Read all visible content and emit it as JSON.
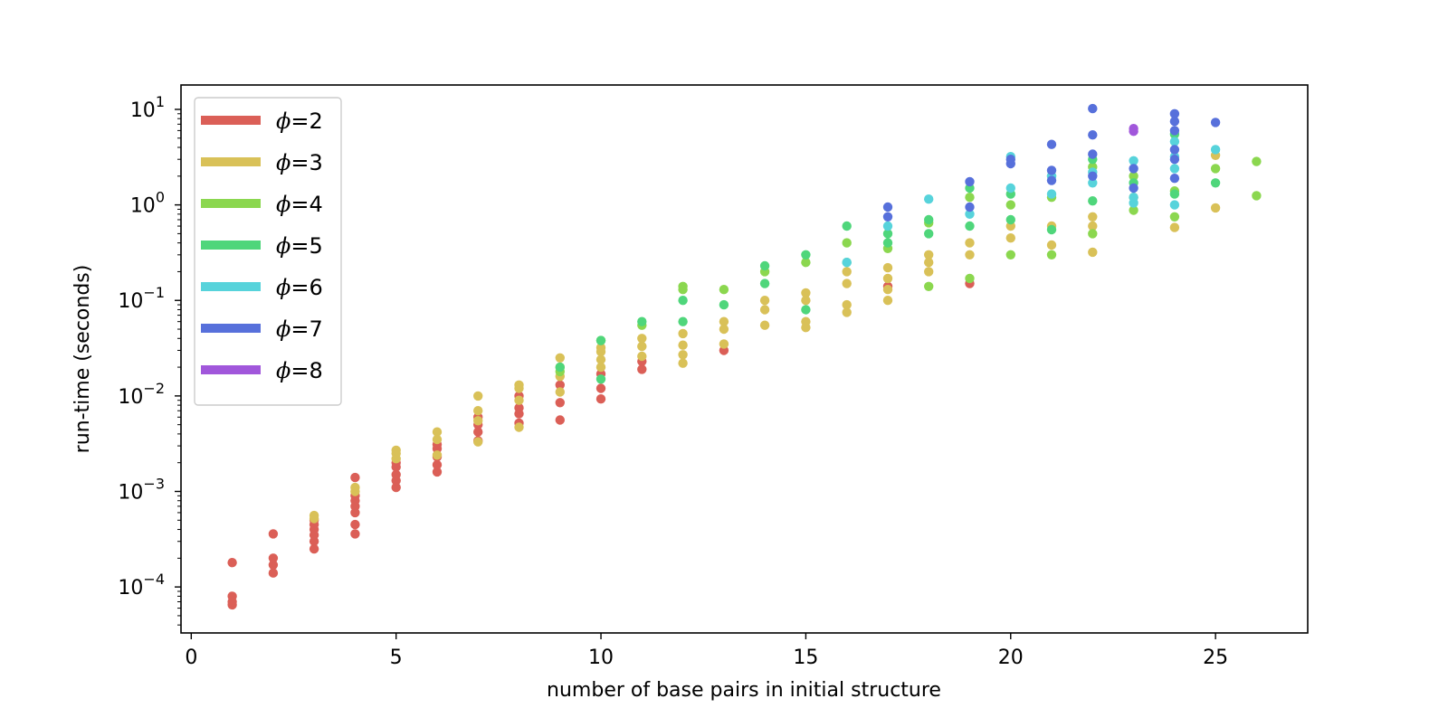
{
  "chart_data": {
    "type": "scatter",
    "title": "",
    "xlabel": "number of base pairs in initial structure",
    "ylabel": "run-time (seconds)",
    "xlim": [
      -0.25,
      27.25
    ],
    "ylim": [
      3.3e-05,
      18
    ],
    "yscale": "log",
    "grid": false,
    "legend_position": "upper-left",
    "x_ticks": [
      {
        "value": 0,
        "label": "0"
      },
      {
        "value": 5,
        "label": "5"
      },
      {
        "value": 10,
        "label": "10"
      },
      {
        "value": 15,
        "label": "15"
      },
      {
        "value": 20,
        "label": "20"
      },
      {
        "value": 25,
        "label": "25"
      }
    ],
    "y_ticks": [
      {
        "value": 0.0001,
        "base": "10",
        "exp": "−4"
      },
      {
        "value": 0.001,
        "base": "10",
        "exp": "−3"
      },
      {
        "value": 0.01,
        "base": "10",
        "exp": "−2"
      },
      {
        "value": 0.1,
        "base": "10",
        "exp": "−1"
      },
      {
        "value": 1,
        "base": "10",
        "exp": "0"
      },
      {
        "value": 10,
        "base": "10",
        "exp": "1"
      }
    ],
    "series": [
      {
        "name": "=2",
        "color": "#db5f57",
        "points": [
          [
            1,
            6.5e-05
          ],
          [
            1,
            7e-05
          ],
          [
            1,
            8e-05
          ],
          [
            1,
            0.00018
          ],
          [
            2,
            0.00014
          ],
          [
            2,
            0.00017
          ],
          [
            2,
            0.0002
          ],
          [
            2,
            0.00036
          ],
          [
            3,
            0.00025
          ],
          [
            3,
            0.0003
          ],
          [
            3,
            0.00035
          ],
          [
            3,
            0.0004
          ],
          [
            3,
            0.00045
          ],
          [
            3,
            0.0005
          ],
          [
            4,
            0.00036
          ],
          [
            4,
            0.00045
          ],
          [
            4,
            0.0006
          ],
          [
            4,
            0.0007
          ],
          [
            4,
            0.0008
          ],
          [
            4,
            0.0009
          ],
          [
            4,
            0.0014
          ],
          [
            5,
            0.0011
          ],
          [
            5,
            0.0013
          ],
          [
            5,
            0.0015
          ],
          [
            5,
            0.0018
          ],
          [
            5,
            0.002
          ],
          [
            6,
            0.0016
          ],
          [
            6,
            0.0019
          ],
          [
            6,
            0.0023
          ],
          [
            6,
            0.0028
          ],
          [
            6,
            0.0031
          ],
          [
            7,
            0.0034
          ],
          [
            7,
            0.0042
          ],
          [
            7,
            0.005
          ],
          [
            7,
            0.006
          ],
          [
            8,
            0.0052
          ],
          [
            8,
            0.0065
          ],
          [
            8,
            0.0075
          ],
          [
            8,
            0.01
          ],
          [
            9,
            0.0056
          ],
          [
            9,
            0.0085
          ],
          [
            9,
            0.013
          ],
          [
            10,
            0.0093
          ],
          [
            10,
            0.012
          ],
          [
            10,
            0.017
          ],
          [
            11,
            0.019
          ],
          [
            11,
            0.023
          ],
          [
            13,
            0.03
          ],
          [
            17,
            0.14
          ],
          [
            19,
            0.15
          ]
        ]
      },
      {
        "name": "=3",
        "color": "#d9c158",
        "points": [
          [
            3,
            0.00052
          ],
          [
            3,
            0.00056
          ],
          [
            4,
            0.001
          ],
          [
            4,
            0.0011
          ],
          [
            5,
            0.0022
          ],
          [
            5,
            0.0025
          ],
          [
            5,
            0.0027
          ],
          [
            6,
            0.0024
          ],
          [
            6,
            0.0035
          ],
          [
            6,
            0.0042
          ],
          [
            7,
            0.0033
          ],
          [
            7,
            0.0055
          ],
          [
            7,
            0.007
          ],
          [
            7,
            0.01
          ],
          [
            8,
            0.0047
          ],
          [
            8,
            0.009
          ],
          [
            8,
            0.012
          ],
          [
            8,
            0.013
          ],
          [
            9,
            0.011
          ],
          [
            9,
            0.016
          ],
          [
            9,
            0.02
          ],
          [
            9,
            0.025
          ],
          [
            10,
            0.02
          ],
          [
            10,
            0.024
          ],
          [
            10,
            0.029
          ],
          [
            10,
            0.032
          ],
          [
            11,
            0.026
          ],
          [
            11,
            0.033
          ],
          [
            11,
            0.04
          ],
          [
            12,
            0.022
          ],
          [
            12,
            0.027
          ],
          [
            12,
            0.034
          ],
          [
            12,
            0.045
          ],
          [
            13,
            0.035
          ],
          [
            13,
            0.05
          ],
          [
            13,
            0.06
          ],
          [
            14,
            0.055
          ],
          [
            14,
            0.08
          ],
          [
            14,
            0.1
          ],
          [
            15,
            0.052
          ],
          [
            15,
            0.06
          ],
          [
            15,
            0.1
          ],
          [
            15,
            0.12
          ],
          [
            16,
            0.075
          ],
          [
            16,
            0.09
          ],
          [
            16,
            0.15
          ],
          [
            16,
            0.2
          ],
          [
            17,
            0.1
          ],
          [
            17,
            0.13
          ],
          [
            17,
            0.17
          ],
          [
            17,
            0.22
          ],
          [
            18,
            0.2
          ],
          [
            18,
            0.25
          ],
          [
            18,
            0.3
          ],
          [
            19,
            0.3
          ],
          [
            19,
            0.4
          ],
          [
            20,
            0.45
          ],
          [
            20,
            0.6
          ],
          [
            21,
            0.38
          ],
          [
            21,
            0.6
          ],
          [
            22,
            0.32
          ],
          [
            22,
            0.6
          ],
          [
            22,
            0.75
          ],
          [
            23,
            1.2
          ],
          [
            24,
            0.58
          ],
          [
            25,
            0.93
          ],
          [
            25,
            3.3
          ]
        ]
      },
      {
        "name": "=4",
        "color": "#8bd74f",
        "points": [
          [
            9,
            0.018
          ],
          [
            10,
            0.038
          ],
          [
            11,
            0.055
          ],
          [
            12,
            0.13
          ],
          [
            12,
            0.14
          ],
          [
            13,
            0.13
          ],
          [
            14,
            0.2
          ],
          [
            15,
            0.25
          ],
          [
            16,
            0.4
          ],
          [
            17,
            0.35
          ],
          [
            18,
            0.14
          ],
          [
            18,
            0.65
          ],
          [
            19,
            0.17
          ],
          [
            19,
            1.2
          ],
          [
            20,
            0.3
          ],
          [
            20,
            1.0
          ],
          [
            21,
            0.3
          ],
          [
            21,
            1.2
          ],
          [
            22,
            0.5
          ],
          [
            22,
            2.5
          ],
          [
            23,
            0.88
          ],
          [
            23,
            2.0
          ],
          [
            24,
            0.75
          ],
          [
            24,
            1.4
          ],
          [
            25,
            2.4
          ],
          [
            26,
            1.25
          ],
          [
            26,
            2.85
          ]
        ]
      },
      {
        "name": "=5",
        "color": "#4fd67b",
        "points": [
          [
            9,
            0.02
          ],
          [
            10,
            0.015
          ],
          [
            10,
            0.038
          ],
          [
            11,
            0.06
          ],
          [
            12,
            0.06
          ],
          [
            12,
            0.1
          ],
          [
            13,
            0.09
          ],
          [
            14,
            0.15
          ],
          [
            14,
            0.23
          ],
          [
            15,
            0.08
          ],
          [
            15,
            0.3
          ],
          [
            16,
            0.6
          ],
          [
            16,
            0.25
          ],
          [
            17,
            0.4
          ],
          [
            17,
            0.5
          ],
          [
            18,
            0.5
          ],
          [
            18,
            0.7
          ],
          [
            19,
            0.6
          ],
          [
            19,
            1.5
          ],
          [
            20,
            0.7
          ],
          [
            20,
            1.3
          ],
          [
            21,
            0.55
          ],
          [
            21,
            2.0
          ],
          [
            22,
            1.1
          ],
          [
            22,
            3.0
          ],
          [
            23,
            1.7
          ],
          [
            24,
            1.3
          ],
          [
            24,
            5.5
          ],
          [
            25,
            1.7
          ]
        ]
      },
      {
        "name": "=6",
        "color": "#57d3db",
        "points": [
          [
            16,
            0.25
          ],
          [
            17,
            0.6
          ],
          [
            18,
            1.15
          ],
          [
            19,
            0.8
          ],
          [
            20,
            1.5
          ],
          [
            20,
            3.2
          ],
          [
            21,
            1.3
          ],
          [
            21,
            2.0
          ],
          [
            22,
            1.7
          ],
          [
            22,
            2.2
          ],
          [
            23,
            1.05
          ],
          [
            23,
            1.2
          ],
          [
            23,
            2.9
          ],
          [
            24,
            1.0
          ],
          [
            24,
            2.4
          ],
          [
            24,
            3.2
          ],
          [
            24,
            4.6
          ],
          [
            25,
            3.8
          ]
        ]
      },
      {
        "name": "=7",
        "color": "#5770db",
        "points": [
          [
            17,
            0.95
          ],
          [
            17,
            0.75
          ],
          [
            19,
            1.75
          ],
          [
            19,
            0.95
          ],
          [
            20,
            2.7
          ],
          [
            20,
            3.0
          ],
          [
            21,
            4.3
          ],
          [
            21,
            2.3
          ],
          [
            21,
            1.8
          ],
          [
            22,
            10.2
          ],
          [
            22,
            5.4
          ],
          [
            22,
            3.4
          ],
          [
            22,
            2.0
          ],
          [
            23,
            2.4
          ],
          [
            23,
            1.5
          ],
          [
            24,
            9.0
          ],
          [
            24,
            7.5
          ],
          [
            24,
            6.0
          ],
          [
            24,
            3.8
          ],
          [
            24,
            3.0
          ],
          [
            24,
            1.9
          ],
          [
            25,
            7.3
          ]
        ]
      },
      {
        "name": "=8",
        "color": "#a157db",
        "points": [
          [
            23,
            5.9
          ],
          [
            23,
            6.3
          ]
        ]
      }
    ]
  }
}
